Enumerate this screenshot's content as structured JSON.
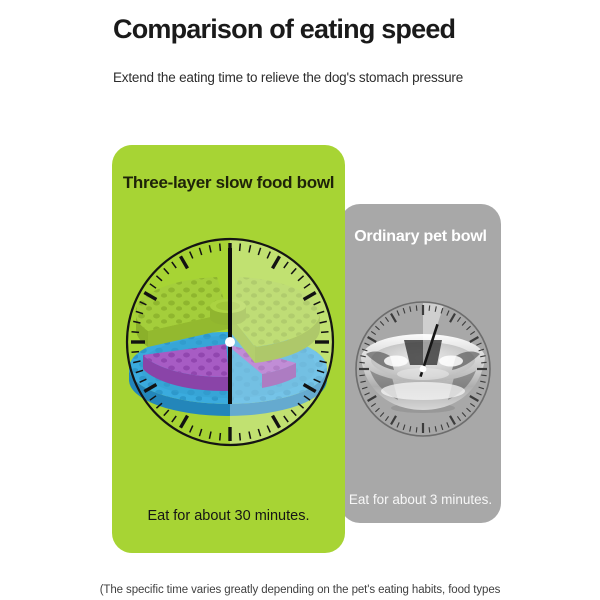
{
  "header": {
    "title": "Comparison of eating speed",
    "subtitle": "Extend the eating time to relieve the dog's stomach pressure"
  },
  "comparison": {
    "slow_bowl": {
      "title": "Three-layer slow food bowl",
      "caption": "Eat for about 30 minutes.",
      "minutes": 30,
      "card_color": "#a7d434",
      "clock_icon": "clock-face-showing-30-minutes"
    },
    "ordinary_bowl": {
      "title": "Ordinary pet bowl",
      "caption": "Eat for about 3 minutes.",
      "minutes": 3,
      "card_color": "#a8a8a8",
      "clock_icon": "clock-face-showing-3-minutes"
    }
  },
  "footnote": "(The specific time varies greatly depending on the pet's eating habits, food types",
  "colors": {
    "slow_card_bg": "#a7d434",
    "ordinary_card_bg": "#a8a8a8",
    "title_text": "#1a1a1a",
    "feeder_green": "#a4ce3b",
    "feeder_purple": "#a75cc4",
    "feeder_blue": "#3aabde"
  }
}
